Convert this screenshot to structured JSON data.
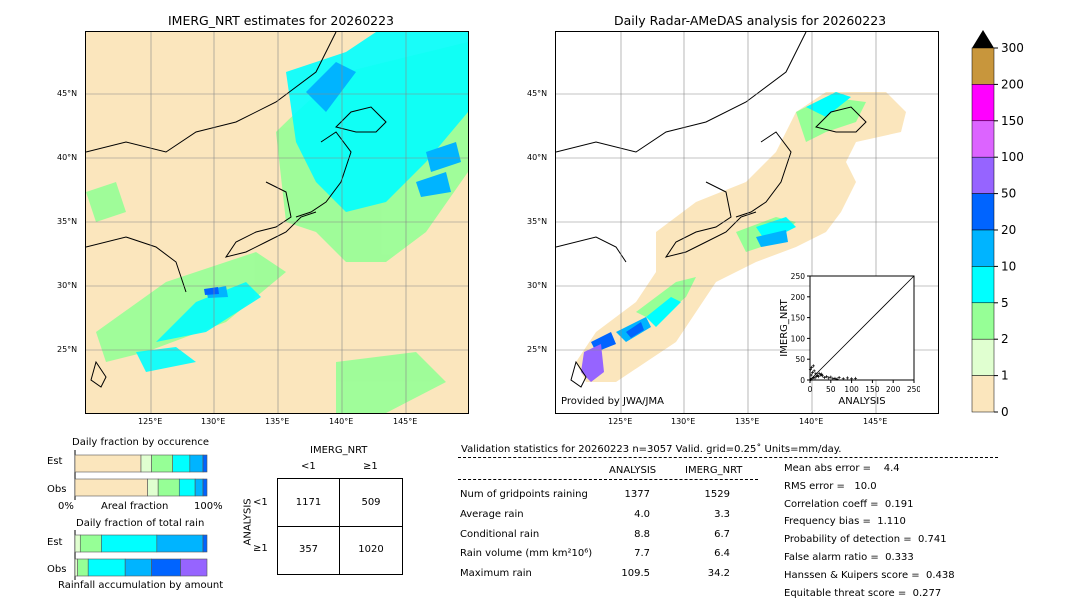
{
  "left_map": {
    "title": "IMERG_NRT estimates for 20260223",
    "lat_labels": [
      "45°N",
      "40°N",
      "35°N",
      "30°N",
      "25°N"
    ],
    "lon_labels": [
      "125°E",
      "130°E",
      "135°E",
      "140°E",
      "145°E"
    ]
  },
  "right_map": {
    "title": "Daily Radar-AMeDAS analysis for 20260223",
    "lat_labels": [
      "45°N",
      "40°N",
      "35°N",
      "30°N",
      "25°N"
    ],
    "lon_labels": [
      "125°E",
      "130°E",
      "135°E",
      "140°E",
      "145°E"
    ],
    "provider": "Provided by JWA/JMA"
  },
  "colorbar": {
    "ticks": [
      "300",
      "200",
      "150",
      "100",
      "50",
      "20",
      "10",
      "5",
      "2",
      "1",
      "0"
    ],
    "colors": [
      "#c8963c",
      "#ff00ff",
      "#dc64ff",
      "#9664ff",
      "#0064ff",
      "#00b4ff",
      "#00ffff",
      "#96ff96",
      "#e0ffd0",
      "#fbe6bd"
    ]
  },
  "chart_data": [
    {
      "type": "scatter",
      "xlabel": "ANALYSIS",
      "ylabel": "IMERG_NRT",
      "xlim": [
        0,
        250
      ],
      "ylim": [
        0,
        250
      ],
      "xticks": [
        "0",
        "50",
        "100",
        "150",
        "200",
        "250"
      ],
      "yticks": [
        "0",
        "50",
        "100",
        "150",
        "200",
        "250"
      ],
      "points": [
        [
          2,
          1
        ],
        [
          5,
          3
        ],
        [
          8,
          6
        ],
        [
          12,
          5
        ],
        [
          15,
          9
        ],
        [
          20,
          8
        ],
        [
          25,
          12
        ],
        [
          30,
          10
        ],
        [
          35,
          6
        ],
        [
          40,
          8
        ],
        [
          45,
          5
        ],
        [
          50,
          7
        ],
        [
          60,
          4
        ],
        [
          70,
          6
        ],
        [
          80,
          3
        ],
        [
          90,
          5
        ],
        [
          100,
          3
        ],
        [
          109.5,
          4
        ],
        [
          3,
          12
        ],
        [
          6,
          18
        ],
        [
          10,
          22
        ],
        [
          14,
          15
        ],
        [
          18,
          11
        ],
        [
          22,
          16
        ],
        [
          28,
          14
        ],
        [
          1,
          25
        ],
        [
          4,
          30
        ],
        [
          8,
          34
        ],
        [
          55,
          3
        ],
        [
          65,
          2
        ]
      ]
    },
    {
      "type": "bar",
      "title": "Daily fraction by occurence",
      "categories": [
        "Est",
        "Obs"
      ],
      "xlabel": "Areal fraction",
      "x_tick_labels": [
        "0%",
        "100%"
      ],
      "series": [
        {
          "color": "#fbe6bd",
          "values": [
            0.5,
            0.55
          ]
        },
        {
          "color": "#e0ffd0",
          "values": [
            0.08,
            0.08
          ]
        },
        {
          "color": "#96ff96",
          "values": [
            0.16,
            0.16
          ]
        },
        {
          "color": "#00ffff",
          "values": [
            0.13,
            0.12
          ]
        },
        {
          "color": "#00b4ff",
          "values": [
            0.1,
            0.06
          ]
        },
        {
          "color": "#0064ff",
          "values": [
            0.03,
            0.03
          ]
        }
      ]
    },
    {
      "type": "bar",
      "title": "Daily fraction of total rain",
      "categories": [
        "Est",
        "Obs"
      ],
      "xlabel": "Rainfall accumulation by amount",
      "series": [
        {
          "color": "#e0ffd0",
          "values": [
            0.04,
            0.02
          ]
        },
        {
          "color": "#96ff96",
          "values": [
            0.16,
            0.08
          ]
        },
        {
          "color": "#00ffff",
          "values": [
            0.42,
            0.28
          ]
        },
        {
          "color": "#00b4ff",
          "values": [
            0.35,
            0.2
          ]
        },
        {
          "color": "#0064ff",
          "values": [
            0.03,
            0.22
          ]
        },
        {
          "color": "#9664ff",
          "values": [
            0.0,
            0.2
          ]
        }
      ]
    },
    {
      "type": "table",
      "title": "IMERG_NRT",
      "col_labels": [
        "<1",
        "≥1"
      ],
      "row_title": "ANALYSIS",
      "row_labels": [
        "<1",
        "≥1"
      ],
      "cells": [
        [
          "1171",
          "509"
        ],
        [
          "357",
          "1020"
        ]
      ]
    }
  ],
  "stats": {
    "header": "Validation statistics for 20260223  n=3057 Valid. grid=0.25˚ Units=mm/day.",
    "col1": "ANALYSIS",
    "col2": "IMERG_NRT",
    "rows": [
      {
        "label": "Num of gridpoints raining",
        "a": "1377",
        "b": "1529"
      },
      {
        "label": "Average rain",
        "a": "4.0",
        "b": "3.3"
      },
      {
        "label": "Conditional rain",
        "a": "8.8",
        "b": "6.7"
      },
      {
        "label": "Rain volume (mm km²10⁶)",
        "a": "7.7",
        "b": "6.4"
      },
      {
        "label": "Maximum rain",
        "a": "109.5",
        "b": "34.2"
      }
    ],
    "scores": [
      "Mean abs error =    4.4",
      "RMS error =   10.0",
      "Correlation coeff =  0.191",
      "Frequency bias =  1.110",
      "Probability of detection =  0.741",
      "False alarm ratio =  0.333",
      "Hanssen & Kuipers score =  0.438",
      "Equitable threat score =  0.277"
    ]
  }
}
